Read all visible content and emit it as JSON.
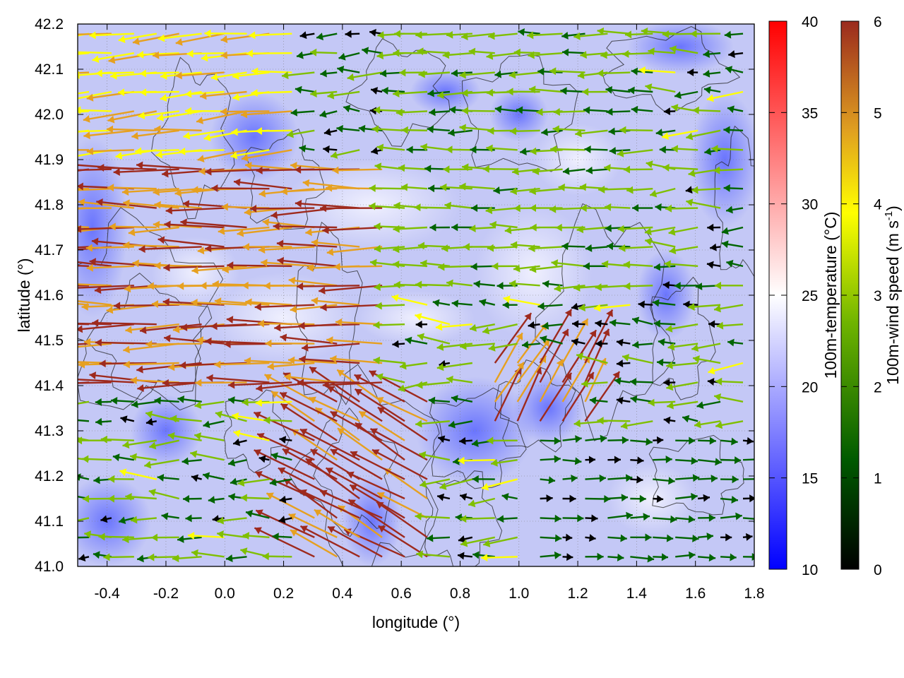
{
  "chart_data": {
    "type": "quiver",
    "title": "",
    "xlabel": "longitude (°)",
    "ylabel": "latitude (°)",
    "xlim": [
      -0.5,
      1.8
    ],
    "ylim": [
      41.0,
      42.2
    ],
    "xticks": [
      "-0.4",
      "-0.2",
      "0.0",
      "0.2",
      "0.4",
      "0.6",
      "0.8",
      "1.0",
      "1.2",
      "1.4",
      "1.6",
      "1.8"
    ],
    "yticks": [
      "41.0",
      "41.1",
      "41.2",
      "41.3",
      "41.4",
      "41.5",
      "41.6",
      "41.7",
      "41.8",
      "41.9",
      "42.0",
      "42.1",
      "42.2"
    ],
    "grid": true,
    "background_field": {
      "name": "100m-temperature",
      "colorbar_label": "100m-temperature (°C)",
      "range": [
        10,
        40
      ],
      "ticks": [
        "10",
        "15",
        "20",
        "25",
        "30",
        "35",
        "40"
      ],
      "palette": [
        "#0000ff",
        "#ffffff",
        "#ff0000"
      ],
      "typical_values_c": [
        18,
        24
      ]
    },
    "vector_field": {
      "name": "100m-wind speed",
      "colorbar_label": "100m-wind speed (m s-1)",
      "label_main": "100m-wind speed (m s",
      "label_sup": "-1",
      "label_end": ")",
      "range": [
        0,
        6
      ],
      "ticks": [
        "0",
        "1",
        "2",
        "3",
        "4",
        "5",
        "6"
      ],
      "palette": [
        "#000000",
        "#006400",
        "#7fbf00",
        "#ffff00",
        "#e6a020",
        "#9e2a1e"
      ],
      "dominant_direction": "westward",
      "regions": [
        {
          "lon": [
            -0.5,
            0.6
          ],
          "lat": [
            41.4,
            41.9
          ],
          "speed_ms": [
            4.0,
            6.0
          ],
          "direction_deg": 180
        },
        {
          "lon": [
            -0.5,
            0.3
          ],
          "lat": [
            41.9,
            42.2
          ],
          "speed_ms": [
            3.0,
            4.5
          ],
          "direction_deg": 185
        },
        {
          "lon": [
            0.6,
            1.5
          ],
          "lat": [
            41.6,
            42.2
          ],
          "speed_ms": [
            1.5,
            3.0
          ],
          "direction_deg": 180
        },
        {
          "lon": [
            0.3,
            0.7
          ],
          "lat": [
            41.0,
            41.4
          ],
          "speed_ms": [
            4.5,
            6.0
          ],
          "direction_deg": 150
        },
        {
          "lon": [
            1.0,
            1.8
          ],
          "lat": [
            41.0,
            41.3
          ],
          "speed_ms": [
            0.5,
            2.0
          ],
          "direction_deg": 0
        },
        {
          "lon": [
            0.9,
            1.3
          ],
          "lat": [
            41.3,
            41.45
          ],
          "speed_ms": [
            4.0,
            5.5
          ],
          "direction_deg": 60
        }
      ]
    },
    "contours": {
      "color": "#222222"
    }
  }
}
